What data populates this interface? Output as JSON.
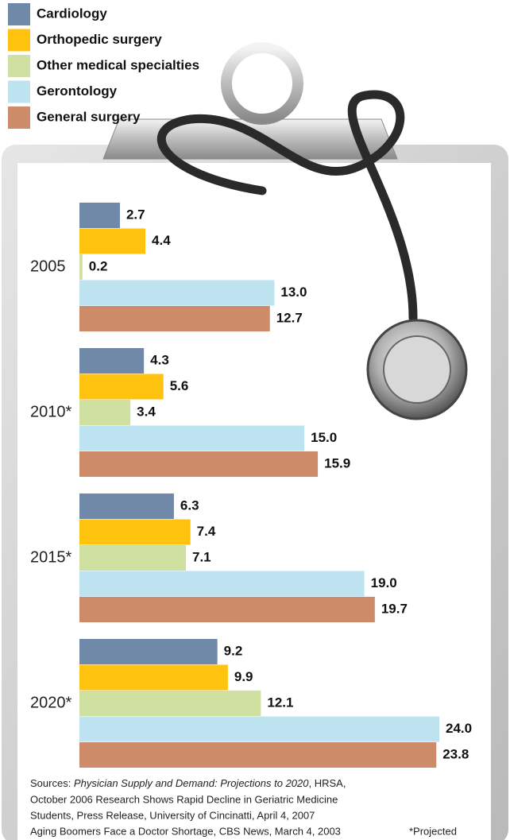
{
  "chart_data": {
    "type": "bar",
    "orientation": "horizontal",
    "categories": [
      "2005",
      "2010*",
      "2015*",
      "2020*"
    ],
    "series": [
      {
        "name": "Cardiology",
        "color": "#7189a8",
        "values": [
          2.7,
          4.3,
          6.3,
          9.2
        ],
        "value_labels": [
          "2.7",
          "4.3",
          "6.3",
          "9.2"
        ]
      },
      {
        "name": "Orthopedic surgery",
        "color": "#ffc20e",
        "values": [
          4.4,
          5.6,
          7.4,
          9.9
        ],
        "value_labels": [
          "4.4",
          "5.6",
          "7.4",
          "9.9"
        ]
      },
      {
        "name": "Other medical specialties",
        "color": "#cfe0a0",
        "values": [
          0.2,
          3.4,
          7.1,
          12.1
        ],
        "value_labels": [
          "0.2",
          "3.4",
          "7.1",
          "12.1"
        ]
      },
      {
        "name": "Gerontology",
        "color": "#bde3f0",
        "values": [
          13.0,
          15.0,
          19.0,
          24.0
        ],
        "value_labels": [
          "13.0",
          "15.0",
          "19.0",
          "24.0"
        ]
      },
      {
        "name": "General surgery",
        "color": "#cd8b6a",
        "values": [
          12.7,
          15.9,
          19.7,
          23.8
        ],
        "value_labels": [
          "12.7",
          "15.9",
          "19.7",
          "23.8"
        ]
      }
    ],
    "legend": "top-left",
    "source_prefix": "Sources: ",
    "source_title": "Physician Supply and Demand: Projections to 2020",
    "source_rest": ", HRSA,",
    "source_lines": [
      "October 2006  Research Shows Rapid Decline in Geriatric Medicine",
      "Students,  Press Release, University of Cincinatti, April 4, 2007",
      " Aging Boomers Face a Doctor Shortage,  CBS News, March 4, 2003"
    ],
    "footnote": "*Projected"
  }
}
